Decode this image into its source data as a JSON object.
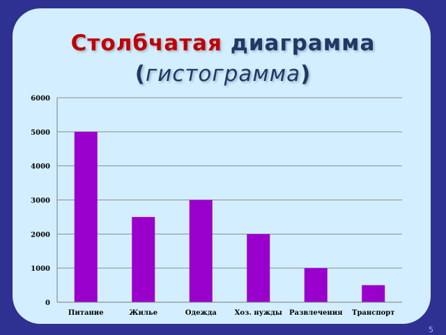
{
  "slide": {
    "title_word1": "Столбчатая",
    "title_word2": "диаграмма",
    "subtitle_open": "(",
    "subtitle_text": "гистограмма",
    "subtitle_close": ")",
    "page_number": "5",
    "background_color": "#2e3192",
    "panel_color": "#d3efff"
  },
  "chart_data": {
    "type": "bar",
    "categories": [
      "Питание",
      "Жилье",
      "Одежда",
      "Хоз. нужды",
      "Развлечения",
      "Транспорт"
    ],
    "values": [
      5000,
      2500,
      3000,
      2000,
      1000,
      500
    ],
    "ylim": [
      0,
      6000
    ],
    "yticks": [
      0,
      1000,
      2000,
      3000,
      4000,
      5000,
      6000
    ],
    "ytick_labels": [
      "0",
      "1000",
      "2000",
      "3000",
      "4000",
      "5000",
      "6000"
    ],
    "grid": true,
    "legend": "none",
    "bar_color": "#9900cc",
    "title": "",
    "xlabel": "",
    "ylabel": ""
  }
}
